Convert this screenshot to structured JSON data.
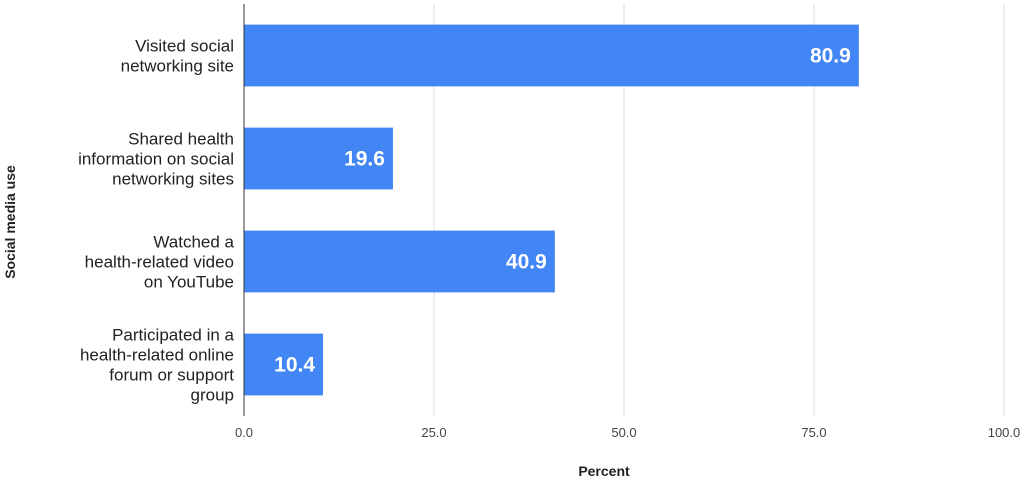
{
  "chart_data": {
    "type": "bar",
    "orientation": "horizontal",
    "categories": [
      [
        "Visited social",
        "networking site"
      ],
      [
        "Shared health",
        "information on social",
        "networking sites"
      ],
      [
        "Watched a",
        "health-related video",
        "on YouTube"
      ],
      [
        "Participated in a",
        "health-related online",
        "forum or support",
        "group"
      ]
    ],
    "values": [
      80.9,
      19.6,
      40.9,
      10.4
    ],
    "value_labels": [
      "80.9",
      "19.6",
      "40.9",
      "10.4"
    ],
    "xlabel": "Percent",
    "ylabel": "Social media use",
    "xlim": [
      0,
      100
    ],
    "x_ticks": [
      0,
      25,
      50,
      75,
      100
    ],
    "x_tick_labels": [
      "0.0",
      "25.0",
      "50.0",
      "75.0",
      "100.0"
    ],
    "grid": true,
    "legend": "none",
    "bar_color": "#4285f4"
  }
}
